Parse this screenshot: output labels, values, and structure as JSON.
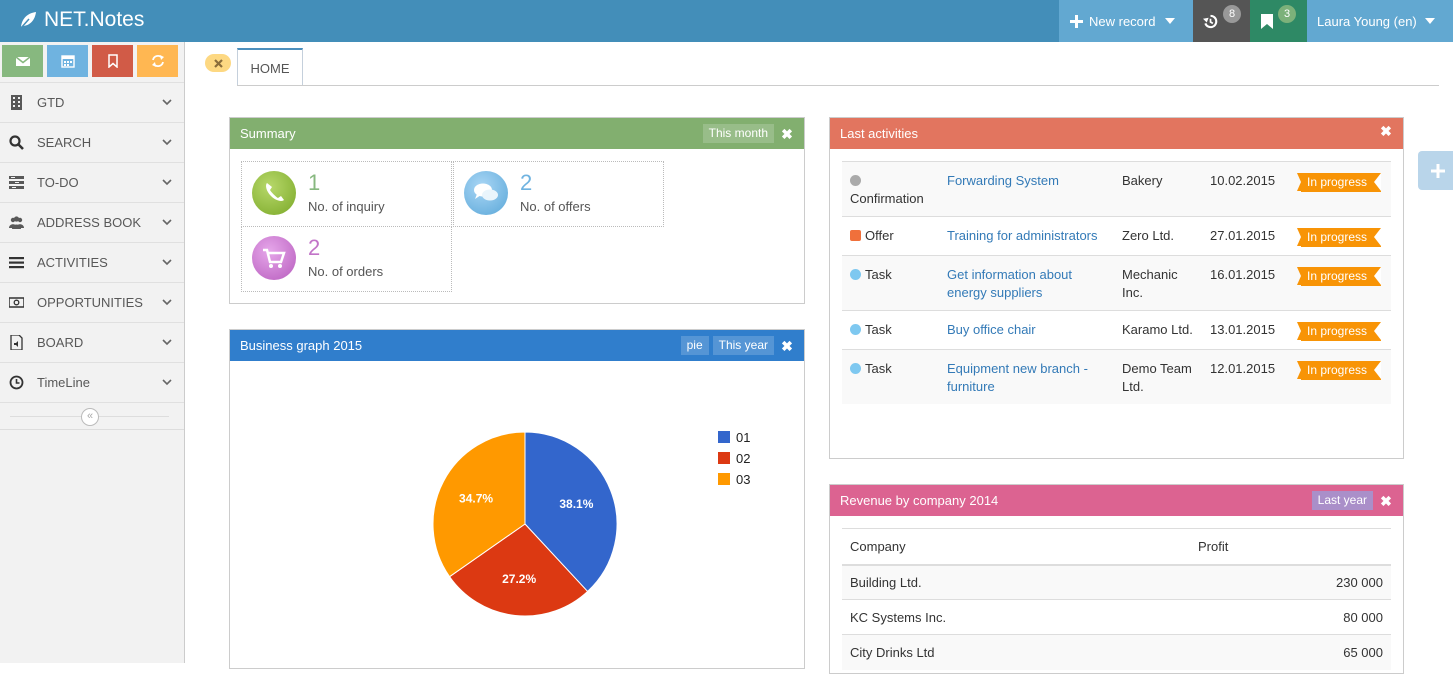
{
  "app": {
    "title": "NET.Notes"
  },
  "topbar": {
    "new_record_label": "New record",
    "history_count": "8",
    "bookmarks_count": "3",
    "user_label": "Laura Young (en)"
  },
  "sidebar": {
    "items": [
      {
        "label": "GTD"
      },
      {
        "label": "SEARCH"
      },
      {
        "label": "TO-DO"
      },
      {
        "label": "ADDRESS BOOK"
      },
      {
        "label": "ACTIVITIES"
      },
      {
        "label": "OPPORTUNITIES"
      },
      {
        "label": "BOARD"
      },
      {
        "label": "TimeLine"
      }
    ],
    "collapse_glyph": "«"
  },
  "tabs": {
    "home": "HOME"
  },
  "summary": {
    "title": "Summary",
    "filter": "This month",
    "boxes": [
      {
        "value": "1",
        "label": "No. of inquiry",
        "color": "#87b87f"
      },
      {
        "value": "2",
        "label": "No. of offers",
        "color": "#6fb3e0"
      },
      {
        "value": "2",
        "label": "No. of orders",
        "color": "#c274c8"
      }
    ]
  },
  "graph": {
    "title": "Business graph 2015",
    "type_label": "pie",
    "filter": "This year"
  },
  "chart_data": {
    "type": "pie",
    "title": "",
    "categories": [
      "01",
      "02",
      "03"
    ],
    "values": [
      38.1,
      27.2,
      34.7
    ],
    "labels": [
      "38.1%",
      "27.2%",
      "34.7%"
    ],
    "colors": [
      "#3366cc",
      "#dc3912",
      "#ff9900"
    ],
    "legend": "right"
  },
  "activities": {
    "title": "Last activities",
    "rows": [
      {
        "type": "Confirmation",
        "color": "#aaaaaa",
        "shape": "dot",
        "subject": "Forwarding System",
        "company": "Bakery",
        "date": "10.02.2015",
        "status": "In progress"
      },
      {
        "type": "Offer",
        "color": "#f0703b",
        "shape": "square",
        "subject": "Training for administrators",
        "company": "Zero Ltd.",
        "date": "27.01.2015",
        "status": "In progress"
      },
      {
        "type": "Task",
        "color": "#7ec8f0",
        "shape": "dot",
        "subject": "Get information about energy suppliers",
        "company": "Mechanic Inc.",
        "date": "16.01.2015",
        "status": "In progress"
      },
      {
        "type": "Task",
        "color": "#7ec8f0",
        "shape": "dot",
        "subject": "Buy office chair",
        "company": "Karamo Ltd.",
        "date": "13.01.2015",
        "status": "In progress"
      },
      {
        "type": "Task",
        "color": "#7ec8f0",
        "shape": "dot",
        "subject": "Equipment new branch - furniture",
        "company": "Demo Team Ltd.",
        "date": "12.01.2015",
        "status": "In progress"
      }
    ]
  },
  "revenue": {
    "title": "Revenue by company 2014",
    "filter": "Last year",
    "columns": [
      "Company",
      "Profit"
    ],
    "rows": [
      {
        "company": "Building Ltd.",
        "profit": "230 000"
      },
      {
        "company": "KC Systems Inc.",
        "profit": "80 000"
      },
      {
        "company": "City Drinks Ltd",
        "profit": "65 000"
      }
    ]
  },
  "colors": {
    "topbar": "#438eb9",
    "summary_header": "#82af6f",
    "graph_header": "#307ecc",
    "activities_header": "#e2755f",
    "revenue_header": "#d6487e",
    "status": "#f89406"
  }
}
